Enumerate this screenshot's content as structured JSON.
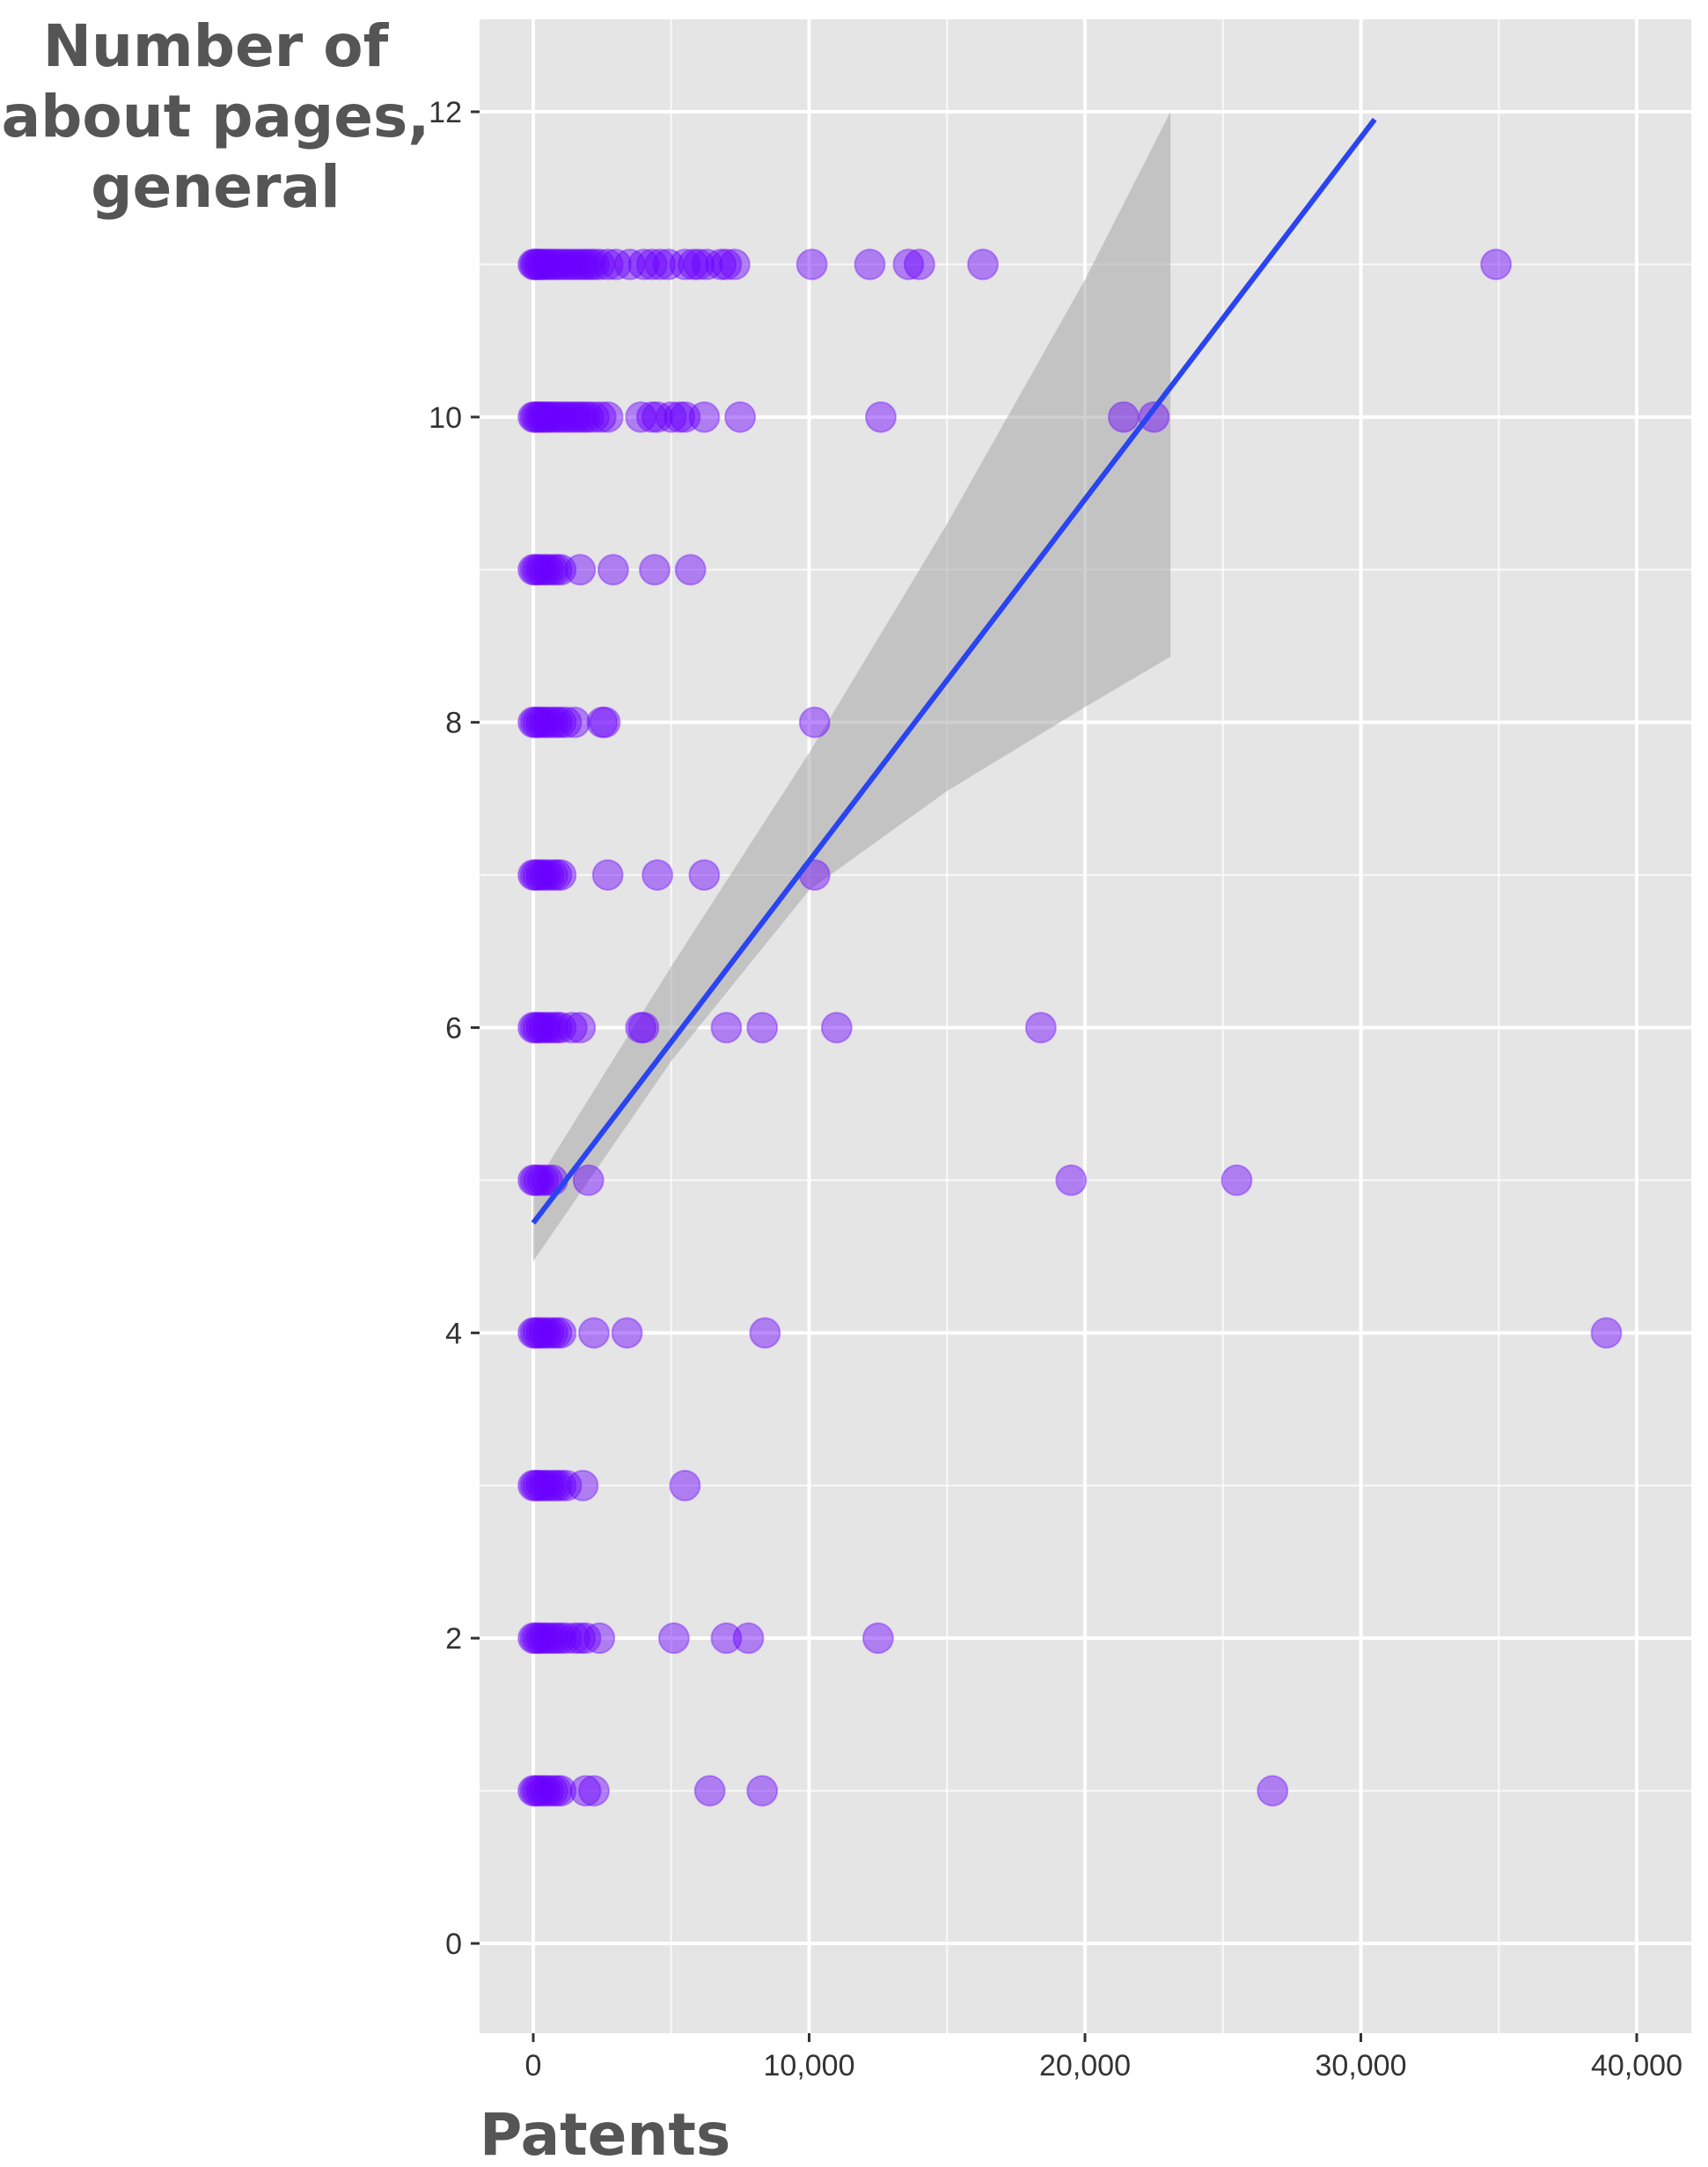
{
  "chart_data": {
    "type": "scatter",
    "title": "",
    "ylabel": "Number of about pages, general",
    "ylabel_lines": [
      "Number of",
      "about pages,",
      "general"
    ],
    "xlabel": "Patents",
    "xlim": [
      -2000,
      42000
    ],
    "ylim": [
      -0.5,
      12.6
    ],
    "x_ticks": [
      0,
      10000,
      20000,
      30000,
      40000
    ],
    "x_tick_labels": [
      "0",
      "10,000",
      "20,000",
      "30,000",
      "40,000"
    ],
    "y_ticks": [
      0,
      2,
      4,
      6,
      8,
      10,
      12
    ],
    "y_tick_labels": [
      "0",
      "2",
      "4",
      "6",
      "8",
      "10",
      "12"
    ],
    "grid": true,
    "legend": "none",
    "colors": {
      "panel_background": "#e5e5e5",
      "grid": "#ffffff",
      "points": "#6a00ff",
      "point_opacity": 0.45,
      "fit_line": "#2a44f0",
      "confidence_band": "#a8a8a8"
    },
    "series": [
      {
        "type": "scatter",
        "points": [
          [
            0,
            11
          ],
          [
            60,
            11
          ],
          [
            120,
            11
          ],
          [
            200,
            11
          ],
          [
            280,
            11
          ],
          [
            380,
            11
          ],
          [
            480,
            11
          ],
          [
            600,
            11
          ],
          [
            720,
            11
          ],
          [
            850,
            11
          ],
          [
            1000,
            11
          ],
          [
            1150,
            11
          ],
          [
            1300,
            11
          ],
          [
            1450,
            11
          ],
          [
            1600,
            11
          ],
          [
            1750,
            11
          ],
          [
            1900,
            11
          ],
          [
            2050,
            11
          ],
          [
            2200,
            11
          ],
          [
            2400,
            11
          ],
          [
            2700,
            11
          ],
          [
            3000,
            11
          ],
          [
            3500,
            11
          ],
          [
            4000,
            11
          ],
          [
            4300,
            11
          ],
          [
            4600,
            11
          ],
          [
            4900,
            11
          ],
          [
            5500,
            11
          ],
          [
            5800,
            11
          ],
          [
            6000,
            11
          ],
          [
            6300,
            11
          ],
          [
            6800,
            11
          ],
          [
            7000,
            11
          ],
          [
            7300,
            11
          ],
          [
            10100,
            11
          ],
          [
            12200,
            11
          ],
          [
            13600,
            11
          ],
          [
            14000,
            11
          ],
          [
            16300,
            11
          ],
          [
            34900,
            11
          ],
          [
            0,
            10
          ],
          [
            70,
            10
          ],
          [
            150,
            10
          ],
          [
            250,
            10
          ],
          [
            350,
            10
          ],
          [
            450,
            10
          ],
          [
            560,
            10
          ],
          [
            680,
            10
          ],
          [
            800,
            10
          ],
          [
            950,
            10
          ],
          [
            1100,
            10
          ],
          [
            1250,
            10
          ],
          [
            1400,
            10
          ],
          [
            1550,
            10
          ],
          [
            1700,
            10
          ],
          [
            1850,
            10
          ],
          [
            2000,
            10
          ],
          [
            2200,
            10
          ],
          [
            2450,
            10
          ],
          [
            2700,
            10
          ],
          [
            3900,
            10
          ],
          [
            4300,
            10
          ],
          [
            4500,
            10
          ],
          [
            5000,
            10
          ],
          [
            5300,
            10
          ],
          [
            5500,
            10
          ],
          [
            6200,
            10
          ],
          [
            7500,
            10
          ],
          [
            12600,
            10
          ],
          [
            21400,
            10
          ],
          [
            22500,
            10
          ],
          [
            0,
            9
          ],
          [
            80,
            9
          ],
          [
            180,
            9
          ],
          [
            300,
            9
          ],
          [
            420,
            9
          ],
          [
            550,
            9
          ],
          [
            700,
            9
          ],
          [
            850,
            9
          ],
          [
            1000,
            9
          ],
          [
            1700,
            9
          ],
          [
            2900,
            9
          ],
          [
            4400,
            9
          ],
          [
            5700,
            9
          ],
          [
            0,
            8
          ],
          [
            80,
            8
          ],
          [
            180,
            8
          ],
          [
            300,
            8
          ],
          [
            420,
            8
          ],
          [
            550,
            8
          ],
          [
            700,
            8
          ],
          [
            850,
            8
          ],
          [
            1000,
            8
          ],
          [
            1200,
            8
          ],
          [
            1500,
            8
          ],
          [
            2500,
            8
          ],
          [
            2600,
            8
          ],
          [
            10200,
            8
          ],
          [
            0,
            7
          ],
          [
            80,
            7
          ],
          [
            180,
            7
          ],
          [
            300,
            7
          ],
          [
            420,
            7
          ],
          [
            550,
            7
          ],
          [
            700,
            7
          ],
          [
            850,
            7
          ],
          [
            1000,
            7
          ],
          [
            2700,
            7
          ],
          [
            4500,
            7
          ],
          [
            6200,
            7
          ],
          [
            10200,
            7
          ],
          [
            0,
            6
          ],
          [
            80,
            6
          ],
          [
            180,
            6
          ],
          [
            300,
            6
          ],
          [
            420,
            6
          ],
          [
            550,
            6
          ],
          [
            700,
            6
          ],
          [
            850,
            6
          ],
          [
            1000,
            6
          ],
          [
            1400,
            6
          ],
          [
            1700,
            6
          ],
          [
            3900,
            6
          ],
          [
            4000,
            6
          ],
          [
            7000,
            6
          ],
          [
            8300,
            6
          ],
          [
            11000,
            6
          ],
          [
            18400,
            6
          ],
          [
            0,
            5
          ],
          [
            80,
            5
          ],
          [
            200,
            5
          ],
          [
            350,
            5
          ],
          [
            500,
            5
          ],
          [
            700,
            5
          ],
          [
            2000,
            5
          ],
          [
            19500,
            5
          ],
          [
            25500,
            5
          ],
          [
            0,
            4
          ],
          [
            80,
            4
          ],
          [
            180,
            4
          ],
          [
            300,
            4
          ],
          [
            420,
            4
          ],
          [
            550,
            4
          ],
          [
            700,
            4
          ],
          [
            850,
            4
          ],
          [
            1000,
            4
          ],
          [
            2200,
            4
          ],
          [
            3400,
            4
          ],
          [
            8400,
            4
          ],
          [
            38900,
            4
          ],
          [
            0,
            3
          ],
          [
            80,
            3
          ],
          [
            180,
            3
          ],
          [
            300,
            3
          ],
          [
            420,
            3
          ],
          [
            550,
            3
          ],
          [
            700,
            3
          ],
          [
            850,
            3
          ],
          [
            1000,
            3
          ],
          [
            1200,
            3
          ],
          [
            1800,
            3
          ],
          [
            5500,
            3
          ],
          [
            0,
            2
          ],
          [
            80,
            2
          ],
          [
            180,
            2
          ],
          [
            300,
            2
          ],
          [
            420,
            2
          ],
          [
            550,
            2
          ],
          [
            700,
            2
          ],
          [
            850,
            2
          ],
          [
            1000,
            2
          ],
          [
            1200,
            2
          ],
          [
            1500,
            2
          ],
          [
            1700,
            2
          ],
          [
            1900,
            2
          ],
          [
            2400,
            2
          ],
          [
            5100,
            2
          ],
          [
            7000,
            2
          ],
          [
            7800,
            2
          ],
          [
            12500,
            2
          ],
          [
            0,
            1
          ],
          [
            80,
            1
          ],
          [
            180,
            1
          ],
          [
            300,
            1
          ],
          [
            420,
            1
          ],
          [
            550,
            1
          ],
          [
            700,
            1
          ],
          [
            850,
            1
          ],
          [
            1000,
            1
          ],
          [
            1900,
            1
          ],
          [
            2200,
            1
          ],
          [
            6400,
            1
          ],
          [
            8300,
            1
          ],
          [
            26800,
            1
          ]
        ]
      },
      {
        "type": "line",
        "points": [
          [
            0,
            4.72
          ],
          [
            30500,
            11.95
          ]
        ]
      },
      {
        "type": "area",
        "upper": [
          [
            0,
            4.95
          ],
          [
            5000,
            6.4
          ],
          [
            10000,
            7.8
          ],
          [
            15000,
            9.3
          ],
          [
            20000,
            10.9
          ],
          [
            23100,
            12.0
          ]
        ],
        "lower": [
          [
            0,
            4.47
          ],
          [
            5000,
            5.78
          ],
          [
            10000,
            6.9
          ],
          [
            15000,
            7.55
          ],
          [
            20000,
            8.1
          ],
          [
            23100,
            8.43
          ]
        ]
      }
    ]
  }
}
